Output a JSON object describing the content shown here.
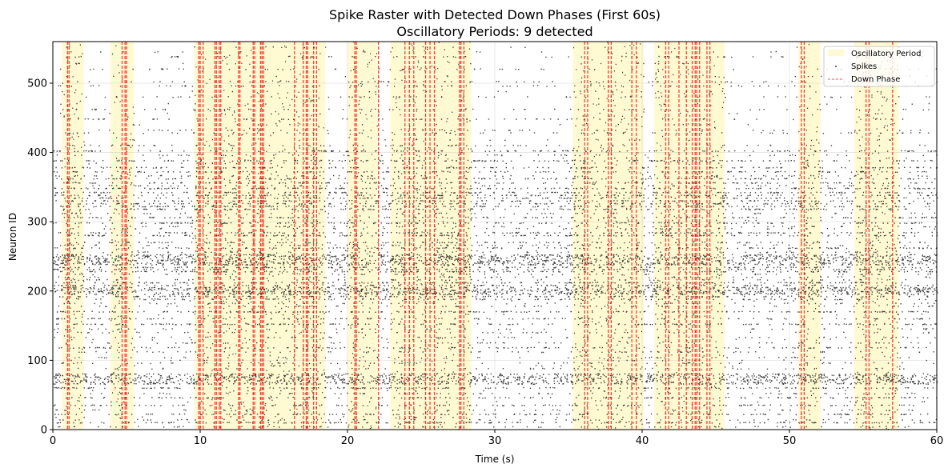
{
  "chart_data": {
    "type": "scatter",
    "title_line1": "Spike Raster with Detected Down Phases (First 60s)",
    "title_line2": "Oscillatory Periods: 9 detected",
    "xlabel": "Time (s)",
    "ylabel": "Neuron ID",
    "xlim": [
      0,
      60
    ],
    "ylim": [
      0,
      560
    ],
    "xticks": [
      0,
      10,
      20,
      30,
      40,
      50,
      60
    ],
    "yticks": [
      0,
      100,
      200,
      300,
      400,
      500
    ],
    "grid": true,
    "legend_position": "top-right",
    "legend": [
      {
        "label": "Oscillatory Period",
        "kind": "patch",
        "color": "#fffacd"
      },
      {
        "label": "Spikes",
        "kind": "marker",
        "color": "#000000"
      },
      {
        "label": "Down Phase",
        "kind": "line",
        "color": "#ff0000"
      }
    ],
    "oscillatory_periods": [
      [
        0.6,
        2.1
      ],
      [
        3.9,
        5.5
      ],
      [
        9.6,
        18.5
      ],
      [
        20.0,
        22.1
      ],
      [
        22.9,
        28.4
      ],
      [
        35.3,
        40.1
      ],
      [
        40.8,
        45.6
      ],
      [
        50.6,
        52.1
      ],
      [
        54.4,
        57.4
      ]
    ],
    "down_phases": [
      1.0,
      1.1,
      4.7,
      4.9,
      5.0,
      9.9,
      10.0,
      10.2,
      11.0,
      11.1,
      11.3,
      11.4,
      12.6,
      12.7,
      13.6,
      13.7,
      14.1,
      14.2,
      14.3,
      16.4,
      17.0,
      17.2,
      17.3,
      17.7,
      17.9,
      20.5,
      20.6,
      22.1,
      23.9,
      24.2,
      24.5,
      25.3,
      25.6,
      25.9,
      27.6,
      27.7,
      27.9,
      36.1,
      36.3,
      37.7,
      37.9,
      39.3,
      39.6,
      41.6,
      41.8,
      42.5,
      43.0,
      43.4,
      43.6,
      43.7,
      43.9,
      44.4,
      44.6,
      50.8,
      51.0,
      55.2,
      55.4,
      57.0
    ],
    "spike_channels": {
      "dense": [
        10,
        22,
        35,
        46,
        60,
        66,
        68,
        70,
        72,
        74,
        76,
        78,
        80,
        118,
        152,
        160,
        170,
        188,
        192,
        195,
        197,
        199,
        201,
        203,
        205,
        208,
        212,
        228,
        231,
        234,
        238,
        240,
        242,
        244,
        246,
        248,
        250,
        252,
        262,
        270,
        280,
        284,
        298,
        306,
        318,
        322,
        326,
        330,
        334,
        338,
        342,
        348,
        356,
        362,
        372,
        378,
        388,
        402
      ],
      "medium": [
        4,
        14,
        28,
        52,
        88,
        96,
        104,
        112,
        125,
        133,
        140,
        145,
        178,
        182,
        216,
        220,
        224,
        256,
        266,
        290,
        293,
        312,
        352,
        366,
        396,
        410,
        428,
        432,
        448,
        462,
        480,
        496,
        502,
        520,
        538
      ],
      "sparse": [
        18,
        40,
        56,
        92,
        100,
        130,
        166,
        186,
        258,
        276,
        302,
        384,
        392,
        418,
        440,
        456,
        470,
        488,
        510,
        528,
        545,
        552
      ]
    },
    "spike_density_per_second": {
      "dense": 3.0,
      "medium": 1.2,
      "sparse": 0.4
    }
  }
}
